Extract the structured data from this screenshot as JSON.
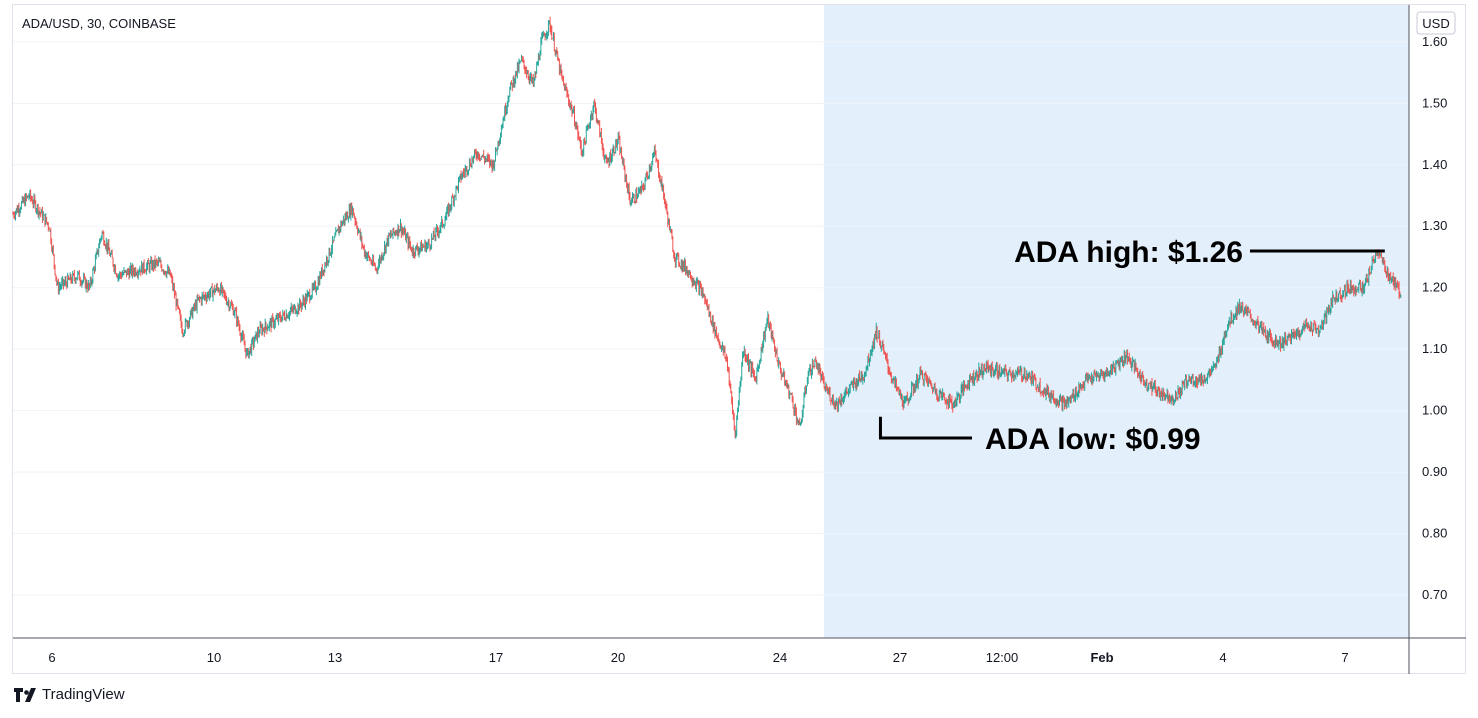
{
  "header": {
    "symbol_title": "ADA/USD, 30, COINBASE"
  },
  "footer": {
    "brand_label": "TradingView",
    "brand_icon": "tradingview-logo-icon"
  },
  "colors": {
    "up": "#26a69a",
    "down": "#ef5350",
    "highlight": "#e3effa",
    "grid": "#f0f3fa",
    "axis_line": "#50535e",
    "annotation": "#000000",
    "text": "#131722"
  },
  "chart_data": {
    "type": "candlestick",
    "symbol": "ADA/USD",
    "interval": "30",
    "exchange": "COINBASE",
    "y_axis": {
      "currency_label": "USD",
      "ticks": [
        "1.60",
        "1.50",
        "1.40",
        "1.30",
        "1.20",
        "1.10",
        "1.00",
        "0.90",
        "0.80",
        "0.70"
      ],
      "range": [
        0.63,
        1.66
      ],
      "position": "right"
    },
    "x_axis": {
      "ticks": [
        "6",
        "10",
        "13",
        "17",
        "20",
        "24",
        "27",
        "12:00",
        "Feb",
        "4",
        "7"
      ],
      "bold_ticks": [
        "Feb"
      ],
      "range_days": [
        4.9,
        39.5
      ]
    },
    "highlight_region": {
      "from_day": 25.0,
      "to_day": 39.5
    },
    "annotations": [
      {
        "text": "ADA high: $1.26",
        "day": 38.9,
        "price": 1.265,
        "side": "left"
      },
      {
        "text": "ADA low: $0.99",
        "day": 26.4,
        "price": 0.99,
        "side": "right"
      }
    ],
    "price_path": [
      [
        4.9,
        1.32
      ],
      [
        5.3,
        1.35
      ],
      [
        5.8,
        1.3
      ],
      [
        6.0,
        1.2
      ],
      [
        6.5,
        1.22
      ],
      [
        6.8,
        1.2
      ],
      [
        7.1,
        1.29
      ],
      [
        7.5,
        1.22
      ],
      [
        8.0,
        1.23
      ],
      [
        8.5,
        1.24
      ],
      [
        8.8,
        1.22
      ],
      [
        9.1,
        1.13
      ],
      [
        9.5,
        1.18
      ],
      [
        10.0,
        1.2
      ],
      [
        10.4,
        1.16
      ],
      [
        10.7,
        1.09
      ],
      [
        11.0,
        1.13
      ],
      [
        11.5,
        1.15
      ],
      [
        12.0,
        1.17
      ],
      [
        12.4,
        1.2
      ],
      [
        12.7,
        1.25
      ],
      [
        13.0,
        1.3
      ],
      [
        13.3,
        1.33
      ],
      [
        13.6,
        1.26
      ],
      [
        13.9,
        1.23
      ],
      [
        14.2,
        1.28
      ],
      [
        14.5,
        1.3
      ],
      [
        14.8,
        1.26
      ],
      [
        15.2,
        1.27
      ],
      [
        15.6,
        1.31
      ],
      [
        16.0,
        1.38
      ],
      [
        16.4,
        1.42
      ],
      [
        16.8,
        1.4
      ],
      [
        17.2,
        1.52
      ],
      [
        17.5,
        1.57
      ],
      [
        17.8,
        1.53
      ],
      [
        18.0,
        1.6
      ],
      [
        18.2,
        1.63
      ],
      [
        18.5,
        1.54
      ],
      [
        18.8,
        1.48
      ],
      [
        19.0,
        1.42
      ],
      [
        19.3,
        1.5
      ],
      [
        19.6,
        1.4
      ],
      [
        19.9,
        1.44
      ],
      [
        20.2,
        1.34
      ],
      [
        20.5,
        1.36
      ],
      [
        20.8,
        1.42
      ],
      [
        21.0,
        1.36
      ],
      [
        21.3,
        1.25
      ],
      [
        21.6,
        1.23
      ],
      [
        22.0,
        1.19
      ],
      [
        22.3,
        1.13
      ],
      [
        22.6,
        1.08
      ],
      [
        22.8,
        0.96
      ],
      [
        23.0,
        1.1
      ],
      [
        23.3,
        1.05
      ],
      [
        23.6,
        1.15
      ],
      [
        23.9,
        1.07
      ],
      [
        24.2,
        1.02
      ],
      [
        24.4,
        0.97
      ],
      [
        24.6,
        1.06
      ],
      [
        24.8,
        1.08
      ],
      [
        25.0,
        1.04
      ],
      [
        25.3,
        1.01
      ],
      [
        25.7,
        1.04
      ],
      [
        26.0,
        1.06
      ],
      [
        26.3,
        1.13
      ],
      [
        26.5,
        1.09
      ],
      [
        26.7,
        1.05
      ],
      [
        27.0,
        1.01
      ],
      [
        27.4,
        1.06
      ],
      [
        27.8,
        1.03
      ],
      [
        28.2,
        1.01
      ],
      [
        28.6,
        1.05
      ],
      [
        29.0,
        1.07
      ],
      [
        29.5,
        1.06
      ],
      [
        30.0,
        1.06
      ],
      [
        30.5,
        1.03
      ],
      [
        31.0,
        1.01
      ],
      [
        31.5,
        1.05
      ],
      [
        32.0,
        1.06
      ],
      [
        32.5,
        1.09
      ],
      [
        32.9,
        1.05
      ],
      [
        33.3,
        1.03
      ],
      [
        33.7,
        1.02
      ],
      [
        34.0,
        1.05
      ],
      [
        34.4,
        1.05
      ],
      [
        34.7,
        1.07
      ],
      [
        35.0,
        1.14
      ],
      [
        35.3,
        1.17
      ],
      [
        35.6,
        1.15
      ],
      [
        36.0,
        1.12
      ],
      [
        36.3,
        1.11
      ],
      [
        36.6,
        1.12
      ],
      [
        37.0,
        1.14
      ],
      [
        37.3,
        1.13
      ],
      [
        37.6,
        1.18
      ],
      [
        38.0,
        1.2
      ],
      [
        38.4,
        1.2
      ],
      [
        38.7,
        1.26
      ],
      [
        39.0,
        1.22
      ],
      [
        39.3,
        1.19
      ]
    ]
  }
}
